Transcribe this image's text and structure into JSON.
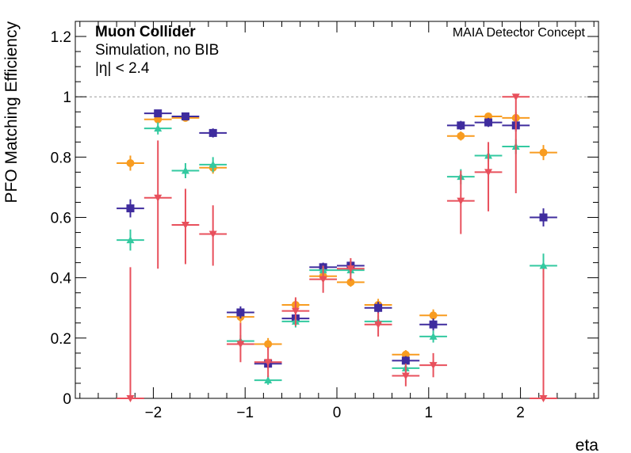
{
  "chart_data": {
    "type": "scatter",
    "title": "Muon Collider",
    "subtitle_lines": [
      "Simulation, no BIB",
      "|η| < 2.4"
    ],
    "annotation_right": "MAIA Detector Concept",
    "xlabel": "eta",
    "ylabel": "PFO Matching Efficiency",
    "xlim": [
      -2.85,
      2.85
    ],
    "ylim": [
      0,
      1.25
    ],
    "x_ticks": [
      -2,
      -1,
      0,
      1,
      2
    ],
    "x_tick_labels": [
      "−2",
      "−1",
      "0",
      "1",
      "2"
    ],
    "y_ticks": [
      0,
      0.2,
      0.4,
      0.6,
      0.8,
      1,
      1.2
    ],
    "y_tick_labels": [
      "0",
      "0.2",
      "0.4",
      "0.6",
      "0.8",
      "1",
      "1.2"
    ],
    "reference_line": 1.0,
    "x": [
      -2.25,
      -1.95,
      -1.65,
      -1.35,
      -1.05,
      -0.75,
      -0.45,
      -0.15,
      0.15,
      0.45,
      0.75,
      1.05,
      1.35,
      1.65,
      1.95,
      2.25
    ],
    "x_halfwidth": 0.15,
    "series": [
      {
        "color": "#f89c20",
        "marker": "circle",
        "values": [
          0.78,
          0.925,
          0.93,
          0.765,
          0.27,
          0.18,
          0.31,
          0.405,
          0.385,
          0.31,
          0.145,
          0.275,
          0.87,
          0.935,
          0.93,
          0.815
        ],
        "errors": [
          0.025,
          0.01,
          0.01,
          0.02,
          0.02,
          0.02,
          0.02,
          0.015,
          0.015,
          0.02,
          0.015,
          0.02,
          0.015,
          0.01,
          0.02,
          0.025
        ]
      },
      {
        "color": "#3f2c9e",
        "marker": "square",
        "values": [
          0.63,
          0.945,
          0.935,
          0.88,
          0.285,
          0.115,
          0.265,
          0.435,
          0.44,
          0.3,
          0.125,
          0.245,
          0.905,
          0.915,
          0.905,
          0.6
        ],
        "errors": [
          0.03,
          0.01,
          0.01,
          0.015,
          0.02,
          0.015,
          0.02,
          0.015,
          0.015,
          0.02,
          0.015,
          0.02,
          0.015,
          0.015,
          0.02,
          0.03
        ]
      },
      {
        "color": "#33c9a0",
        "marker": "triangle-up",
        "values": [
          0.525,
          0.895,
          0.755,
          0.775,
          0.19,
          0.06,
          0.255,
          0.425,
          0.425,
          0.255,
          0.1,
          0.205,
          0.735,
          0.805,
          0.835,
          0.44
        ],
        "errors": [
          0.035,
          0.02,
          0.025,
          0.025,
          0.02,
          0.015,
          0.02,
          0.015,
          0.015,
          0.02,
          0.015,
          0.02,
          0.025,
          0.02,
          0.025,
          0.04
        ]
      },
      {
        "color": "#e8505c",
        "marker": "triangle-down",
        "values": [
          0.0,
          0.665,
          0.575,
          0.545,
          0.18,
          0.12,
          0.29,
          0.395,
          0.43,
          0.245,
          0.075,
          0.11,
          0.655,
          0.75,
          1.0,
          0.0
        ],
        "err_low": [
          0.0,
          0.235,
          0.13,
          0.105,
          0.06,
          0.05,
          0.05,
          0.045,
          0.04,
          0.04,
          0.035,
          0.04,
          0.11,
          0.13,
          0.32,
          0.0
        ],
        "err_high": [
          0.435,
          0.19,
          0.12,
          0.095,
          0.07,
          0.05,
          0.045,
          0.045,
          0.035,
          0.04,
          0.04,
          0.04,
          0.1,
          0.1,
          0.0,
          0.43
        ]
      }
    ],
    "grid": false,
    "legend": "none"
  }
}
